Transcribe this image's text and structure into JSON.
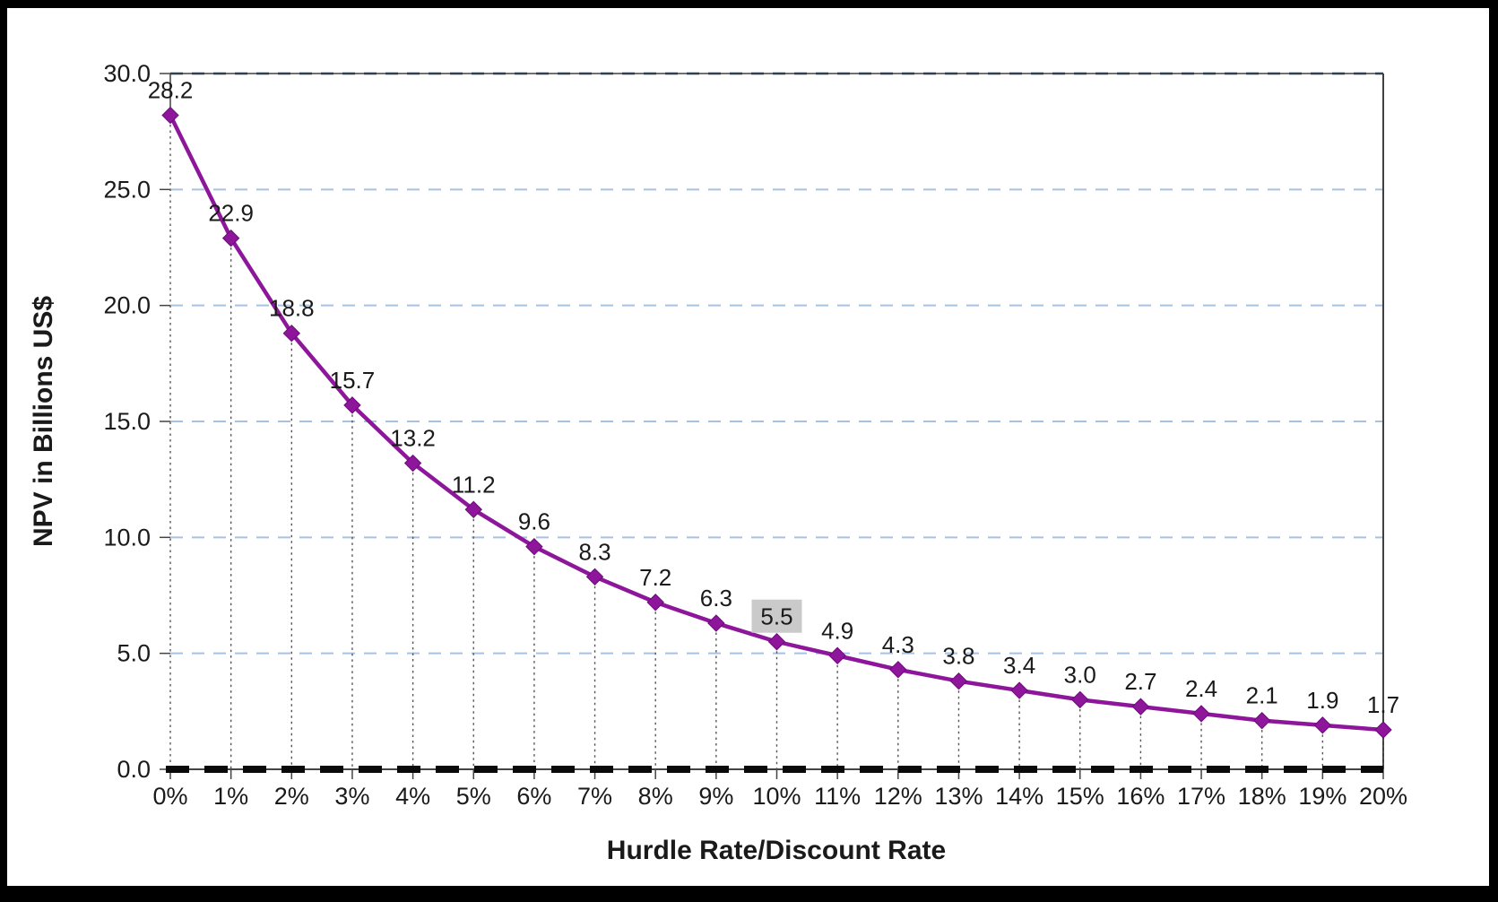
{
  "chart_data": {
    "type": "line",
    "title": "",
    "xlabel": "Hurdle Rate/Discount Rate",
    "ylabel": "NPV in Billions US$",
    "categories": [
      "0%",
      "1%",
      "2%",
      "3%",
      "4%",
      "5%",
      "6%",
      "7%",
      "8%",
      "9%",
      "10%",
      "11%",
      "12%",
      "13%",
      "14%",
      "15%",
      "16%",
      "17%",
      "18%",
      "19%",
      "20%"
    ],
    "values": [
      28.2,
      22.9,
      18.8,
      15.7,
      13.2,
      11.2,
      9.6,
      8.3,
      7.2,
      6.3,
      5.5,
      4.9,
      4.3,
      3.8,
      3.4,
      3.0,
      2.7,
      2.4,
      2.1,
      1.9,
      1.7
    ],
    "point_labels": [
      "28.2",
      "22.9",
      "18.8",
      "15.7",
      "13.2",
      "11.2",
      "9.6",
      "8.3",
      "7.2",
      "6.3",
      "5.5",
      "4.9",
      "4.3",
      "3.8",
      "3.4",
      "3.0",
      "2.7",
      "2.4",
      "2.1",
      "1.9",
      "1.7"
    ],
    "highlighted_point": {
      "category": "10%",
      "label": "5.5",
      "highlight_bg": "#CACACA"
    },
    "y_ticks": [
      "0.0",
      "5.0",
      "10.0",
      "15.0",
      "20.0",
      "25.0",
      "30.0"
    ],
    "y_tick_step": 5,
    "ylim": [
      0,
      30
    ],
    "grid": "horizontal-dashed",
    "legend": "none",
    "series_color": "#8D169B",
    "marker_edge_color": "#70077E",
    "gridline_color": "#A6C2E2",
    "top_gridline_color": "#17365D",
    "border_color": "#404040",
    "tick_color": "#444444",
    "drop_line_color": "#555555",
    "zero_line_color": "#0A0A0A",
    "background_color": "#FFFFFF",
    "frame_color": "#000000"
  }
}
